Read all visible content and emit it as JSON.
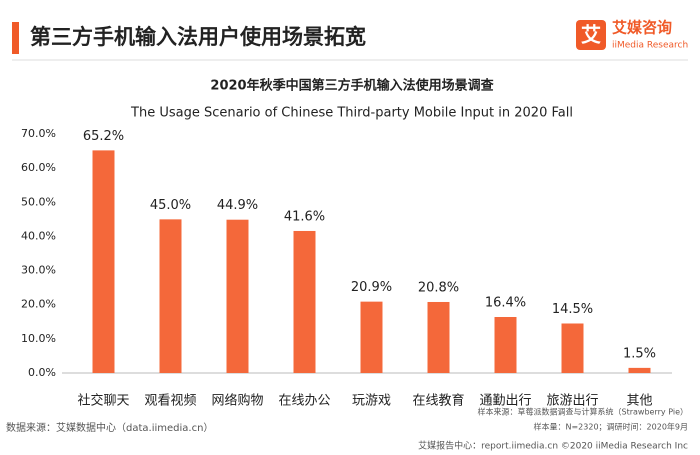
{
  "header": {
    "title": "第三方手机输入法用户使用场景拓宽",
    "logo_icon": "艾",
    "logo_name": "艾媒咨询",
    "logo_sub": "iiMedia Research"
  },
  "chart_data": {
    "type": "bar",
    "title": "2020年秋季中国第三方手机输入法使用场景调查",
    "subtitle": "The Usage Scenario of Chinese Third-party Mobile Input in 2020 Fall",
    "categories": [
      "社交聊天",
      "观看视频",
      "网络购物",
      "在线办公",
      "玩游戏",
      "在线教育",
      "通勤出行",
      "旅游出行",
      "其他"
    ],
    "values": [
      65.2,
      45.0,
      44.9,
      41.6,
      20.9,
      20.8,
      16.4,
      14.5,
      1.5
    ],
    "value_labels": [
      "65.2%",
      "45.0%",
      "44.9%",
      "41.6%",
      "20.9%",
      "20.8%",
      "16.4%",
      "14.5%",
      "1.5%"
    ],
    "color": "#f4683a",
    "ylim": [
      0,
      70
    ],
    "yticks": [
      {
        "value": 0,
        "label": "0.0%"
      },
      {
        "value": 10,
        "label": "10.0%"
      },
      {
        "value": 20,
        "label": "20.0%"
      },
      {
        "value": 30,
        "label": "30.0%"
      },
      {
        "value": 40,
        "label": "40.0%"
      },
      {
        "value": 50,
        "label": "50.0%"
      },
      {
        "value": 60,
        "label": "60.0%"
      },
      {
        "value": 70,
        "label": "70.0%"
      }
    ],
    "grid": false
  },
  "notes": {
    "sample_source": "样本来源：草莓派数据调查与计算系统（Strawberry Pie）",
    "sample_size": "样本量：N=2320；调研时间：2020年9月",
    "data_source": "数据来源：艾媒数据中心（data.iimedia.cn）"
  },
  "footer": "艾媒报告中心：report.iimedia.cn ©2020 iiMedia Research Inc"
}
